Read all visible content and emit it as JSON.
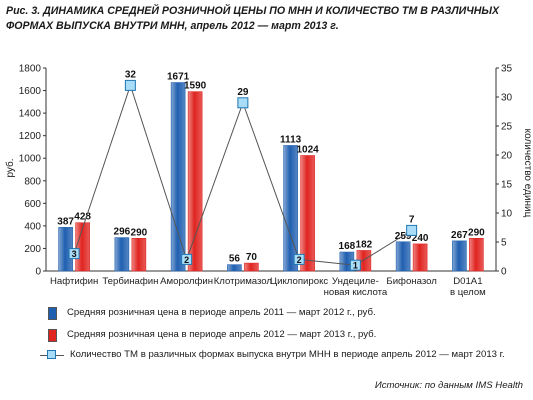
{
  "title": "Рис. 3. ДИНАМИКА СРЕДНЕЙ РОЗНИЧНОЙ ЦЕНЫ ПО МНН И КОЛИЧЕСТВО ТМ В РАЗЛИЧНЫХ ФОРМАХ ВЫПУСКА ВНУТРИ МНН, апрель 2012 — март 2013 г.",
  "source": "Источник: по данным IMS Health",
  "chart_data": {
    "type": "bar",
    "categories": [
      "Нафтифин",
      "Тербинафин",
      "Аморолфин",
      "Клотримазол",
      "Циклопирокс",
      "Ундецилeновая кислота",
      "Бифоназол",
      "D01A1 в целом"
    ],
    "category_lines": [
      [
        "Нафтифин"
      ],
      [
        "Тербинафин"
      ],
      [
        "Аморолфин"
      ],
      [
        "Клотримазол"
      ],
      [
        "Циклопирокс"
      ],
      [
        "Ундециле-",
        "новая кислота"
      ],
      [
        "Бифоназол"
      ],
      [
        "D01A1",
        "в целом"
      ]
    ],
    "series": [
      {
        "name": "Средняя розничная цена в периоде апрель 2011 — март 2012 г., руб.",
        "values": [
          387,
          296,
          1671,
          56,
          1113,
          168,
          259,
          267
        ],
        "color": "#1f5fb0",
        "axis": "left"
      },
      {
        "name": "Средняя розничная цена в периоде апрель 2012 — март 2013 г., руб.",
        "values": [
          428,
          290,
          1590,
          70,
          1024,
          182,
          240,
          290
        ],
        "color": "#e02420",
        "axis": "left"
      },
      {
        "name": "Количество ТМ в различных формах выпуска внутри МНН в периоде апрель 2012 — март 2013 г.",
        "values": [
          3,
          32,
          2,
          29,
          2,
          1,
          7,
          null
        ],
        "type": "line",
        "axis": "right",
        "color": "#a9dcf6",
        "edge": "#1f77b4"
      }
    ],
    "ylabel": "руб.",
    "y2label": "количество единиц",
    "ylim": [
      0,
      1800
    ],
    "y2lim": [
      0,
      35
    ],
    "yticks": [
      0,
      200,
      400,
      600,
      800,
      1000,
      1200,
      1400,
      1600,
      1800
    ],
    "y2ticks": [
      0,
      5,
      10,
      15,
      20,
      25,
      30,
      35
    ]
  }
}
